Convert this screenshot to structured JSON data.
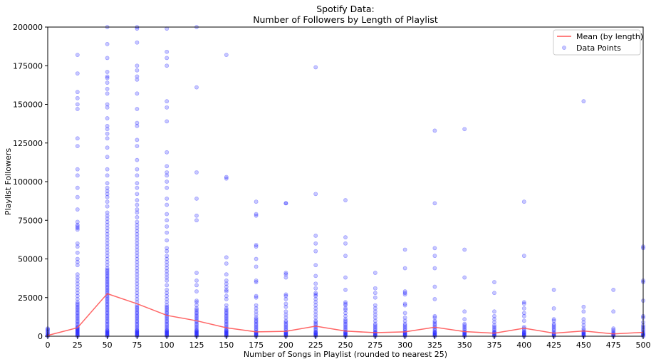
{
  "chart_data": {
    "type": "scatter",
    "title_line1": "Spotify Data:",
    "title_line2": "Number of Followers by Length of Playlist",
    "xlabel": "Number of Songs in Playlist (rounded to nearest 25)",
    "ylabel": "Playlist Followers",
    "xlim": [
      0,
      500
    ],
    "ylim": [
      0,
      200000
    ],
    "x_ticks": [
      0,
      25,
      50,
      75,
      100,
      125,
      150,
      175,
      200,
      225,
      250,
      275,
      300,
      325,
      350,
      375,
      400,
      425,
      450,
      475,
      500
    ],
    "y_ticks": [
      0,
      25000,
      50000,
      75000,
      100000,
      125000,
      150000,
      175000,
      200000
    ],
    "grid": false,
    "legend_position": "top-right",
    "colors": {
      "mean_line": "#ff5555",
      "points": "#0000ff"
    },
    "series": [
      {
        "name": "Mean (by length)",
        "kind": "line",
        "x": [
          0,
          25,
          50,
          75,
          100,
          125,
          150,
          175,
          200,
          225,
          250,
          275,
          300,
          325,
          350,
          375,
          400,
          425,
          450,
          475,
          500
        ],
        "y": [
          500,
          5500,
          27500,
          21000,
          13500,
          10000,
          5500,
          2800,
          3200,
          6500,
          3300,
          2300,
          2800,
          5800,
          3000,
          2000,
          5200,
          2000,
          3400,
          1500,
          2500
        ]
      },
      {
        "name": "Data Points",
        "kind": "scatter",
        "columns": [
          {
            "x": 0,
            "y": [
              0,
              400,
              900,
              1500,
              2200,
              3000,
              3800,
              4500,
              5000
            ]
          },
          {
            "x": 25,
            "y": [
              0,
              500,
              1000,
              1500,
              2000,
              2500,
              3000,
              3500,
              4000,
              4500,
              5000,
              5500,
              6000,
              7000,
              8000,
              9000,
              10000,
              11000,
              12000,
              13000,
              14000,
              15000,
              16000,
              17000,
              18000,
              19000,
              20000,
              21000,
              22000,
              24000,
              26000,
              28000,
              30000,
              32000,
              34000,
              36000,
              38000,
              40000,
              46000,
              48000,
              50000,
              54000,
              58000,
              60000,
              69000,
              70000,
              71000,
              72000,
              74000,
              82000,
              90000,
              96000,
              104000,
              108000,
              123000,
              128000,
              147000,
              150000,
              154000,
              158000,
              170000,
              182000
            ]
          },
          {
            "x": 50,
            "y": [
              0,
              500,
              1000,
              1500,
              2000,
              2500,
              3000,
              3500,
              4000,
              5000,
              6000,
              7000,
              8000,
              9000,
              10000,
              11000,
              12000,
              13000,
              14000,
              15000,
              16000,
              17000,
              18000,
              19000,
              20000,
              21000,
              22000,
              23000,
              24000,
              25000,
              26000,
              27000,
              28000,
              29000,
              30000,
              31000,
              32000,
              33000,
              34000,
              35000,
              36000,
              37000,
              38000,
              39000,
              40000,
              41000,
              42000,
              43000,
              44000,
              46000,
              48000,
              50000,
              52000,
              54000,
              56000,
              58000,
              60000,
              62000,
              64000,
              66000,
              68000,
              70000,
              72000,
              74000,
              76000,
              78000,
              80000,
              84000,
              87000,
              90000,
              92000,
              94000,
              96000,
              99000,
              104000,
              108000,
              116000,
              122000,
              128000,
              131000,
              134000,
              136000,
              141000,
              148000,
              150000,
              157000,
              160000,
              164000,
              167000,
              168000,
              171000,
              180000,
              189000,
              200000
            ]
          },
          {
            "x": 75,
            "y": [
              0,
              500,
              1000,
              1500,
              2000,
              2500,
              3000,
              3500,
              4000,
              5000,
              6000,
              7000,
              8000,
              9000,
              10000,
              11000,
              12000,
              13000,
              14000,
              15000,
              16000,
              17000,
              18000,
              19000,
              20000,
              22000,
              24000,
              26000,
              28000,
              30000,
              32000,
              34000,
              36000,
              38000,
              40000,
              42000,
              44000,
              46000,
              48000,
              50000,
              52000,
              54000,
              56000,
              58000,
              60000,
              62000,
              64000,
              66000,
              68000,
              70000,
              72000,
              74000,
              77000,
              80000,
              82000,
              85000,
              88000,
              92000,
              96000,
              99000,
              104000,
              108000,
              114000,
              123000,
              127000,
              136000,
              138000,
              147000,
              157000,
              166000,
              168000,
              172000,
              175000,
              190000,
              199000,
              200000
            ]
          },
          {
            "x": 100,
            "y": [
              0,
              500,
              1000,
              1500,
              2000,
              2500,
              3000,
              3500,
              4000,
              5000,
              6000,
              7000,
              8000,
              9000,
              10000,
              11000,
              12000,
              13000,
              14000,
              15000,
              16000,
              17000,
              18000,
              19000,
              20000,
              22000,
              24000,
              26000,
              28000,
              30000,
              33000,
              36000,
              38000,
              40000,
              42000,
              44000,
              46000,
              48000,
              50000,
              52000,
              55000,
              57000,
              62000,
              67000,
              71000,
              75000,
              79000,
              85000,
              89000,
              96000,
              100000,
              104000,
              106000,
              110000,
              119000,
              139000,
              148000,
              152000,
              175000,
              180000,
              184000,
              199000
            ]
          },
          {
            "x": 125,
            "y": [
              0,
              500,
              1000,
              1500,
              2000,
              2500,
              3000,
              3500,
              4000,
              5000,
              6000,
              7000,
              8000,
              9000,
              10000,
              11000,
              12000,
              13000,
              14000,
              15000,
              16000,
              17000,
              18000,
              20000,
              22000,
              23000,
              29000,
              33000,
              36000,
              41000,
              75000,
              78000,
              89000,
              106000,
              161000,
              200000
            ]
          },
          {
            "x": 150,
            "y": [
              0,
              500,
              1000,
              1500,
              2000,
              2500,
              3000,
              3500,
              4000,
              5000,
              6000,
              7000,
              8000,
              9000,
              10000,
              11000,
              12000,
              13000,
              14000,
              15000,
              16000,
              17000,
              18000,
              20000,
              24000,
              26000,
              29000,
              30000,
              32000,
              34000,
              36000,
              40000,
              47000,
              51000,
              102000,
              103000,
              182000
            ]
          },
          {
            "x": 175,
            "y": [
              0,
              500,
              1000,
              1500,
              2000,
              2500,
              3000,
              4000,
              5000,
              6000,
              7000,
              8000,
              9000,
              10000,
              11000,
              12000,
              14000,
              16000,
              18000,
              20000,
              25000,
              26000,
              35000,
              36000,
              45000,
              50000,
              58000,
              59000,
              78000,
              79000,
              87000
            ]
          },
          {
            "x": 200,
            "y": [
              0,
              500,
              1000,
              1500,
              2000,
              2500,
              3000,
              4000,
              5000,
              6000,
              7000,
              8000,
              9000,
              10000,
              12000,
              14000,
              16000,
              19000,
              21000,
              24000,
              26000,
              27000,
              38000,
              40000,
              41000,
              86000,
              86000
            ]
          },
          {
            "x": 225,
            "y": [
              0,
              500,
              1000,
              1500,
              2000,
              2500,
              3000,
              4000,
              5000,
              6000,
              7000,
              8000,
              9000,
              10000,
              12000,
              14000,
              16000,
              18000,
              20000,
              22000,
              24000,
              26000,
              27000,
              28000,
              31000,
              34000,
              39000,
              46000,
              55000,
              60000,
              65000,
              92000,
              174000
            ]
          },
          {
            "x": 250,
            "y": [
              0,
              500,
              1000,
              1500,
              2000,
              2500,
              3000,
              4000,
              5000,
              6000,
              7000,
              8000,
              9000,
              10000,
              11000,
              13000,
              15000,
              17000,
              18000,
              20000,
              21000,
              22000,
              30000,
              38000,
              52000,
              60000,
              64000,
              88000
            ]
          },
          {
            "x": 275,
            "y": [
              0,
              500,
              1000,
              1500,
              2000,
              2500,
              3000,
              4000,
              5000,
              6000,
              7000,
              8000,
              10000,
              12000,
              14000,
              16000,
              18000,
              20000,
              25000,
              28000,
              31000,
              41000
            ]
          },
          {
            "x": 300,
            "y": [
              0,
              500,
              1000,
              1500,
              2000,
              2500,
              3000,
              4000,
              5000,
              6000,
              7000,
              8000,
              10000,
              12000,
              15000,
              20000,
              21000,
              27000,
              28000,
              29000,
              44000,
              56000
            ]
          },
          {
            "x": 325,
            "y": [
              0,
              500,
              1000,
              1500,
              2000,
              2500,
              3000,
              4000,
              5000,
              6000,
              7000,
              8000,
              9000,
              10000,
              12000,
              13000,
              24000,
              32000,
              44000,
              52000,
              57000,
              86000,
              133000
            ]
          },
          {
            "x": 350,
            "y": [
              0,
              500,
              1000,
              1500,
              2000,
              2500,
              3000,
              4000,
              5000,
              6000,
              7000,
              8000,
              11000,
              16000,
              38000,
              56000,
              134000
            ]
          },
          {
            "x": 375,
            "y": [
              0,
              500,
              1000,
              1500,
              2000,
              2500,
              3000,
              4000,
              5000,
              6000,
              7000,
              9000,
              11000,
              13000,
              16000,
              28000,
              35000
            ]
          },
          {
            "x": 400,
            "y": [
              0,
              500,
              1000,
              1500,
              2000,
              2500,
              3000,
              4000,
              5000,
              6000,
              10000,
              13000,
              15000,
              18000,
              21000,
              22000,
              52000,
              87000
            ]
          },
          {
            "x": 425,
            "y": [
              0,
              500,
              1000,
              1500,
              2000,
              3000,
              4000,
              5000,
              6000,
              7000,
              8000,
              10000,
              11000,
              18000,
              30000
            ]
          },
          {
            "x": 450,
            "y": [
              0,
              500,
              1000,
              1500,
              2000,
              2500,
              3000,
              4000,
              5000,
              7000,
              9000,
              11000,
              16000,
              19000,
              152000
            ]
          },
          {
            "x": 475,
            "y": [
              0,
              500,
              1000,
              1500,
              2000,
              3000,
              4000,
              5000,
              16000,
              30000
            ]
          },
          {
            "x": 500,
            "y": [
              0,
              500,
              1000,
              1500,
              2000,
              3000,
              4000,
              5000,
              6000,
              7000,
              9000,
              12000,
              13000,
              23000,
              35000,
              36000,
              57000,
              58000
            ]
          }
        ]
      }
    ]
  }
}
